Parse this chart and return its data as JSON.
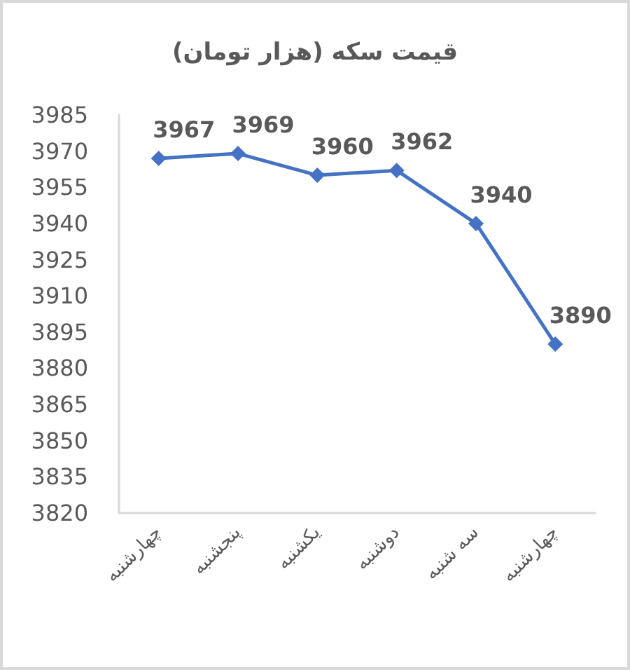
{
  "chart_data": {
    "type": "line",
    "title": "قیمت سکه (هزار تومان)",
    "categories": [
      "چهارشنبه",
      "پنجشنبه",
      "یکشنبه",
      "دوشنبه",
      "سه شنبه",
      "چهارشنبه"
    ],
    "series": [
      {
        "color": "#4472c4",
        "values": [
          3967,
          3969,
          3960,
          3962,
          3940,
          3890
        ]
      }
    ],
    "ylim": [
      3820,
      3985
    ],
    "yticks": [
      3820,
      3835,
      3850,
      3865,
      3880,
      3895,
      3910,
      3925,
      3940,
      3955,
      3970,
      3985
    ],
    "marker": "diamond",
    "data_labels": true
  }
}
